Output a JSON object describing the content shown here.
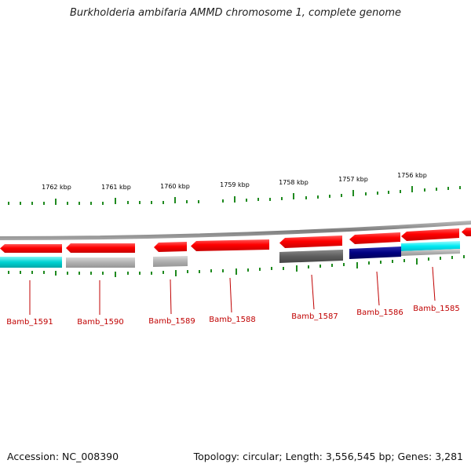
{
  "title": "Burkholderia ambifaria AMMD chromosome 1, complete genome",
  "footer": {
    "accession": "Accession: NC_008390",
    "summary": "Topology: circular; Length: 3,556,545 bp; Genes: 3,281"
  },
  "scale": {
    "unit": "kbp",
    "ticks": [
      "1762 kbp",
      "1761 kbp",
      "1760 kbp",
      "1759 kbp",
      "1758 kbp",
      "1757 kbp",
      "1756 kbp"
    ],
    "tick_color": "#1f8a1f"
  },
  "genes": [
    {
      "locus": "Bamb_1591",
      "strand": "minus",
      "top_color": "#ff0000",
      "bottom_color": "#00c8c8"
    },
    {
      "locus": "Bamb_1590",
      "strand": "minus",
      "top_color": "#ff0000",
      "bottom_color": "#aaaaaa"
    },
    {
      "locus": "Bamb_1589",
      "strand": "minus",
      "top_color": "#ff0000",
      "bottom_color": "#aaaaaa"
    },
    {
      "locus": "Bamb_1588",
      "strand": "minus",
      "top_color": "#ff0000",
      "bottom_color": null
    },
    {
      "locus": "Bamb_1587",
      "strand": "minus",
      "top_color": "#ff0000",
      "bottom_color": "#666666"
    },
    {
      "locus": "Bamb_1586",
      "strand": "minus",
      "top_color": "#ff0000",
      "bottom_color": "#000080"
    },
    {
      "locus": "Bamb_1585",
      "strand": "minus",
      "top_color": "#ff0000",
      "bottom_color": "#00e5ee"
    }
  ],
  "colors": {
    "label": "#c00000",
    "backbone": "#888888"
  }
}
